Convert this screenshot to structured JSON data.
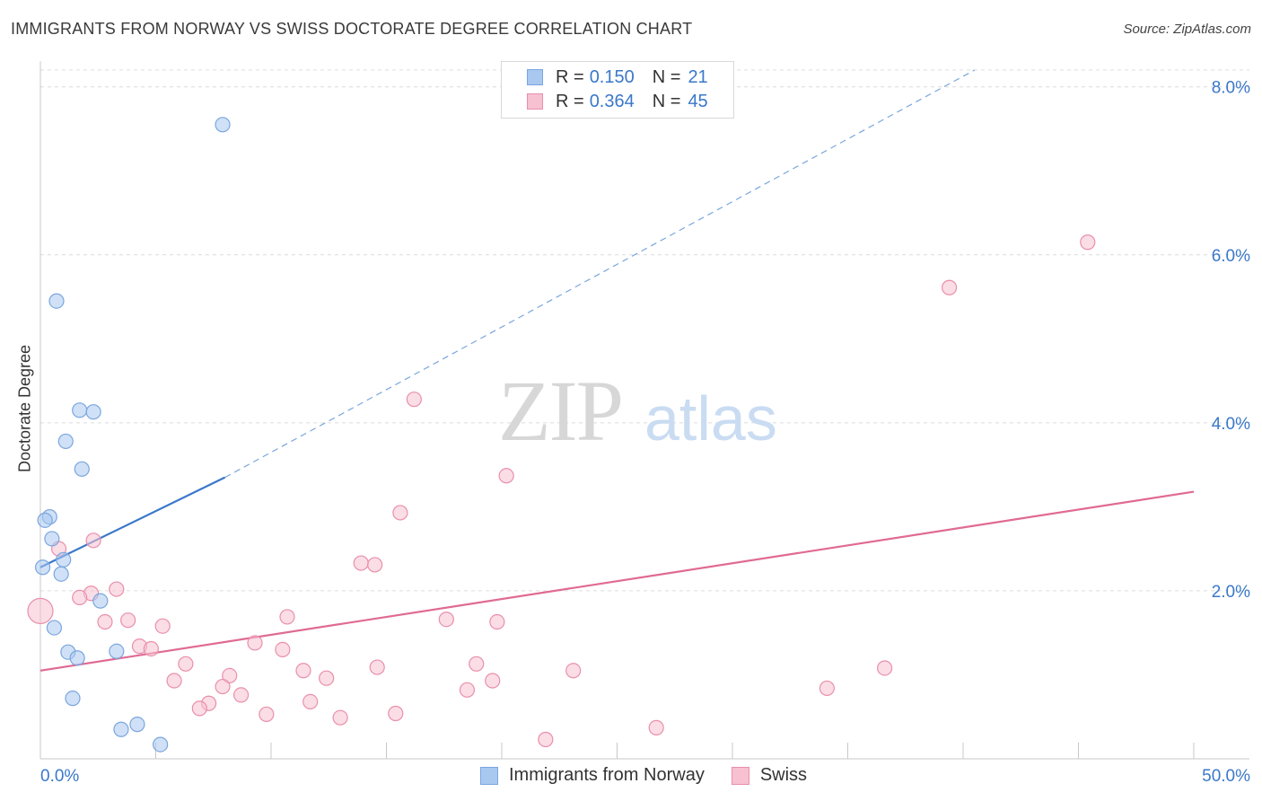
{
  "header": {
    "title": "IMMIGRANTS FROM NORWAY VS SWISS DOCTORATE DEGREE CORRELATION CHART",
    "source": "Source: ZipAtlas.com"
  },
  "watermark": {
    "zip": "ZIP",
    "atlas": "atlas"
  },
  "legend": {
    "rows": [
      {
        "r_label": "R =",
        "r_value": "0.150",
        "n_label": "N =",
        "n_value": "21",
        "color": "#a9c8f0",
        "border": "#7aa6de"
      },
      {
        "r_label": "R =",
        "r_value": "0.364",
        "n_label": "N =",
        "n_value": "45",
        "color": "#f7c1d1",
        "border": "#e98fab"
      }
    ]
  },
  "bottom_legend": [
    {
      "label": "Immigrants from Norway",
      "color": "#a9c8f0",
      "border": "#7aa6de"
    },
    {
      "label": "Swiss",
      "color": "#f7c1d1",
      "border": "#e98fab"
    }
  ],
  "chart_data": {
    "type": "scatter",
    "title": "IMMIGRANTS FROM NORWAY VS SWISS DOCTORATE DEGREE CORRELATION CHART",
    "xlabel": "",
    "ylabel": "Doctorate Degree",
    "xlim": [
      0,
      50
    ],
    "ylim": [
      0,
      8.2
    ],
    "x_tick_labels": [
      "0.0%",
      "50.0%"
    ],
    "y_ticks": [
      2,
      4,
      6,
      8
    ],
    "y_tick_labels": [
      "2.0%",
      "4.0%",
      "6.0%",
      "8.0%"
    ],
    "series": [
      {
        "name": "Immigrants from Norway",
        "color": "#a9c8f0",
        "stroke": "#7aa6de",
        "line_color": "#3a78c9",
        "trend": {
          "x0": 0,
          "y0": 2.28,
          "x1": 8,
          "y1": 3.35,
          "dash_x1": 40.5,
          "dash_y1": 8.2
        },
        "points": [
          {
            "x": 7.9,
            "y": 7.55,
            "r": 8
          },
          {
            "x": 0.7,
            "y": 5.45,
            "r": 8
          },
          {
            "x": 1.7,
            "y": 4.15,
            "r": 8
          },
          {
            "x": 2.3,
            "y": 4.13,
            "r": 8
          },
          {
            "x": 1.1,
            "y": 3.78,
            "r": 8
          },
          {
            "x": 1.8,
            "y": 3.45,
            "r": 8
          },
          {
            "x": 0.4,
            "y": 2.88,
            "r": 8
          },
          {
            "x": 0.2,
            "y": 2.84,
            "r": 8
          },
          {
            "x": 0.5,
            "y": 2.62,
            "r": 8
          },
          {
            "x": 1.0,
            "y": 2.37,
            "r": 8
          },
          {
            "x": 0.1,
            "y": 2.28,
            "r": 8
          },
          {
            "x": 0.9,
            "y": 2.2,
            "r": 8
          },
          {
            "x": 2.6,
            "y": 1.88,
            "r": 8
          },
          {
            "x": 0.6,
            "y": 1.56,
            "r": 8
          },
          {
            "x": 1.2,
            "y": 1.27,
            "r": 8
          },
          {
            "x": 1.6,
            "y": 1.2,
            "r": 8
          },
          {
            "x": 3.3,
            "y": 1.28,
            "r": 8
          },
          {
            "x": 1.4,
            "y": 0.72,
            "r": 8
          },
          {
            "x": 4.2,
            "y": 0.41,
            "r": 8
          },
          {
            "x": 3.5,
            "y": 0.35,
            "r": 8
          },
          {
            "x": 5.2,
            "y": 0.17,
            "r": 8
          }
        ]
      },
      {
        "name": "Swiss",
        "color": "#f7c1d1",
        "stroke": "#e98fab",
        "line_color": "#e06a93",
        "trend": {
          "x0": 0,
          "y0": 1.05,
          "x1": 50,
          "y1": 3.18
        },
        "points": [
          {
            "x": 45.4,
            "y": 6.15,
            "r": 8
          },
          {
            "x": 39.4,
            "y": 5.61,
            "r": 8
          },
          {
            "x": 16.2,
            "y": 4.28,
            "r": 8
          },
          {
            "x": 20.2,
            "y": 3.37,
            "r": 8
          },
          {
            "x": 15.6,
            "y": 2.93,
            "r": 8
          },
          {
            "x": 2.3,
            "y": 2.6,
            "r": 8
          },
          {
            "x": 0.8,
            "y": 2.5,
            "r": 8
          },
          {
            "x": 13.9,
            "y": 2.33,
            "r": 8
          },
          {
            "x": 14.5,
            "y": 2.31,
            "r": 8
          },
          {
            "x": 3.3,
            "y": 2.02,
            "r": 8
          },
          {
            "x": 2.2,
            "y": 1.97,
            "r": 8
          },
          {
            "x": 1.7,
            "y": 1.92,
            "r": 8
          },
          {
            "x": 0.0,
            "y": 1.76,
            "r": 14
          },
          {
            "x": 10.7,
            "y": 1.69,
            "r": 8
          },
          {
            "x": 17.6,
            "y": 1.66,
            "r": 8
          },
          {
            "x": 19.8,
            "y": 1.63,
            "r": 8
          },
          {
            "x": 2.8,
            "y": 1.63,
            "r": 8
          },
          {
            "x": 3.8,
            "y": 1.65,
            "r": 8
          },
          {
            "x": 5.3,
            "y": 1.58,
            "r": 8
          },
          {
            "x": 9.3,
            "y": 1.38,
            "r": 8
          },
          {
            "x": 4.3,
            "y": 1.34,
            "r": 8
          },
          {
            "x": 4.8,
            "y": 1.31,
            "r": 8
          },
          {
            "x": 10.5,
            "y": 1.3,
            "r": 8
          },
          {
            "x": 6.3,
            "y": 1.13,
            "r": 8
          },
          {
            "x": 18.9,
            "y": 1.13,
            "r": 8
          },
          {
            "x": 14.6,
            "y": 1.09,
            "r": 8
          },
          {
            "x": 11.4,
            "y": 1.05,
            "r": 8
          },
          {
            "x": 23.1,
            "y": 1.05,
            "r": 8
          },
          {
            "x": 36.6,
            "y": 1.08,
            "r": 8
          },
          {
            "x": 8.2,
            "y": 0.99,
            "r": 8
          },
          {
            "x": 12.4,
            "y": 0.96,
            "r": 8
          },
          {
            "x": 5.8,
            "y": 0.93,
            "r": 8
          },
          {
            "x": 19.6,
            "y": 0.93,
            "r": 8
          },
          {
            "x": 7.9,
            "y": 0.86,
            "r": 8
          },
          {
            "x": 34.1,
            "y": 0.84,
            "r": 8
          },
          {
            "x": 18.5,
            "y": 0.82,
            "r": 8
          },
          {
            "x": 8.7,
            "y": 0.76,
            "r": 8
          },
          {
            "x": 11.7,
            "y": 0.68,
            "r": 8
          },
          {
            "x": 7.3,
            "y": 0.66,
            "r": 8
          },
          {
            "x": 6.9,
            "y": 0.6,
            "r": 8
          },
          {
            "x": 9.8,
            "y": 0.53,
            "r": 8
          },
          {
            "x": 15.4,
            "y": 0.54,
            "r": 8
          },
          {
            "x": 13.0,
            "y": 0.49,
            "r": 8
          },
          {
            "x": 26.7,
            "y": 0.37,
            "r": 8
          },
          {
            "x": 21.9,
            "y": 0.23,
            "r": 8
          }
        ]
      }
    ]
  }
}
